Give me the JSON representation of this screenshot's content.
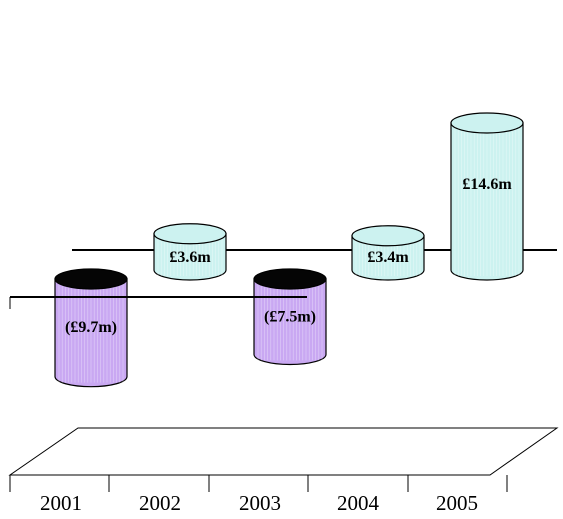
{
  "chart_data": {
    "type": "bar",
    "shape": "cylinder-3d",
    "categories": [
      "2001",
      "2002",
      "2003",
      "2004",
      "2005"
    ],
    "values": [
      -9.7,
      3.6,
      -7.5,
      3.4,
      14.6
    ],
    "data_labels": [
      "(£9.7m)",
      "£3.6m",
      "(£7.5m)",
      "£3.4m",
      "£14.6m"
    ],
    "unit": "£m",
    "title": "",
    "xlabel": "",
    "ylabel": "",
    "grid": false,
    "legend": "none",
    "colors": {
      "positive_body": "#ccf2f0",
      "positive_top": "#ccf2f0",
      "negative_body": "#c9a8f2",
      "negative_top": "#050505",
      "stroke": "#000000",
      "stripe": "#ffffff"
    }
  }
}
